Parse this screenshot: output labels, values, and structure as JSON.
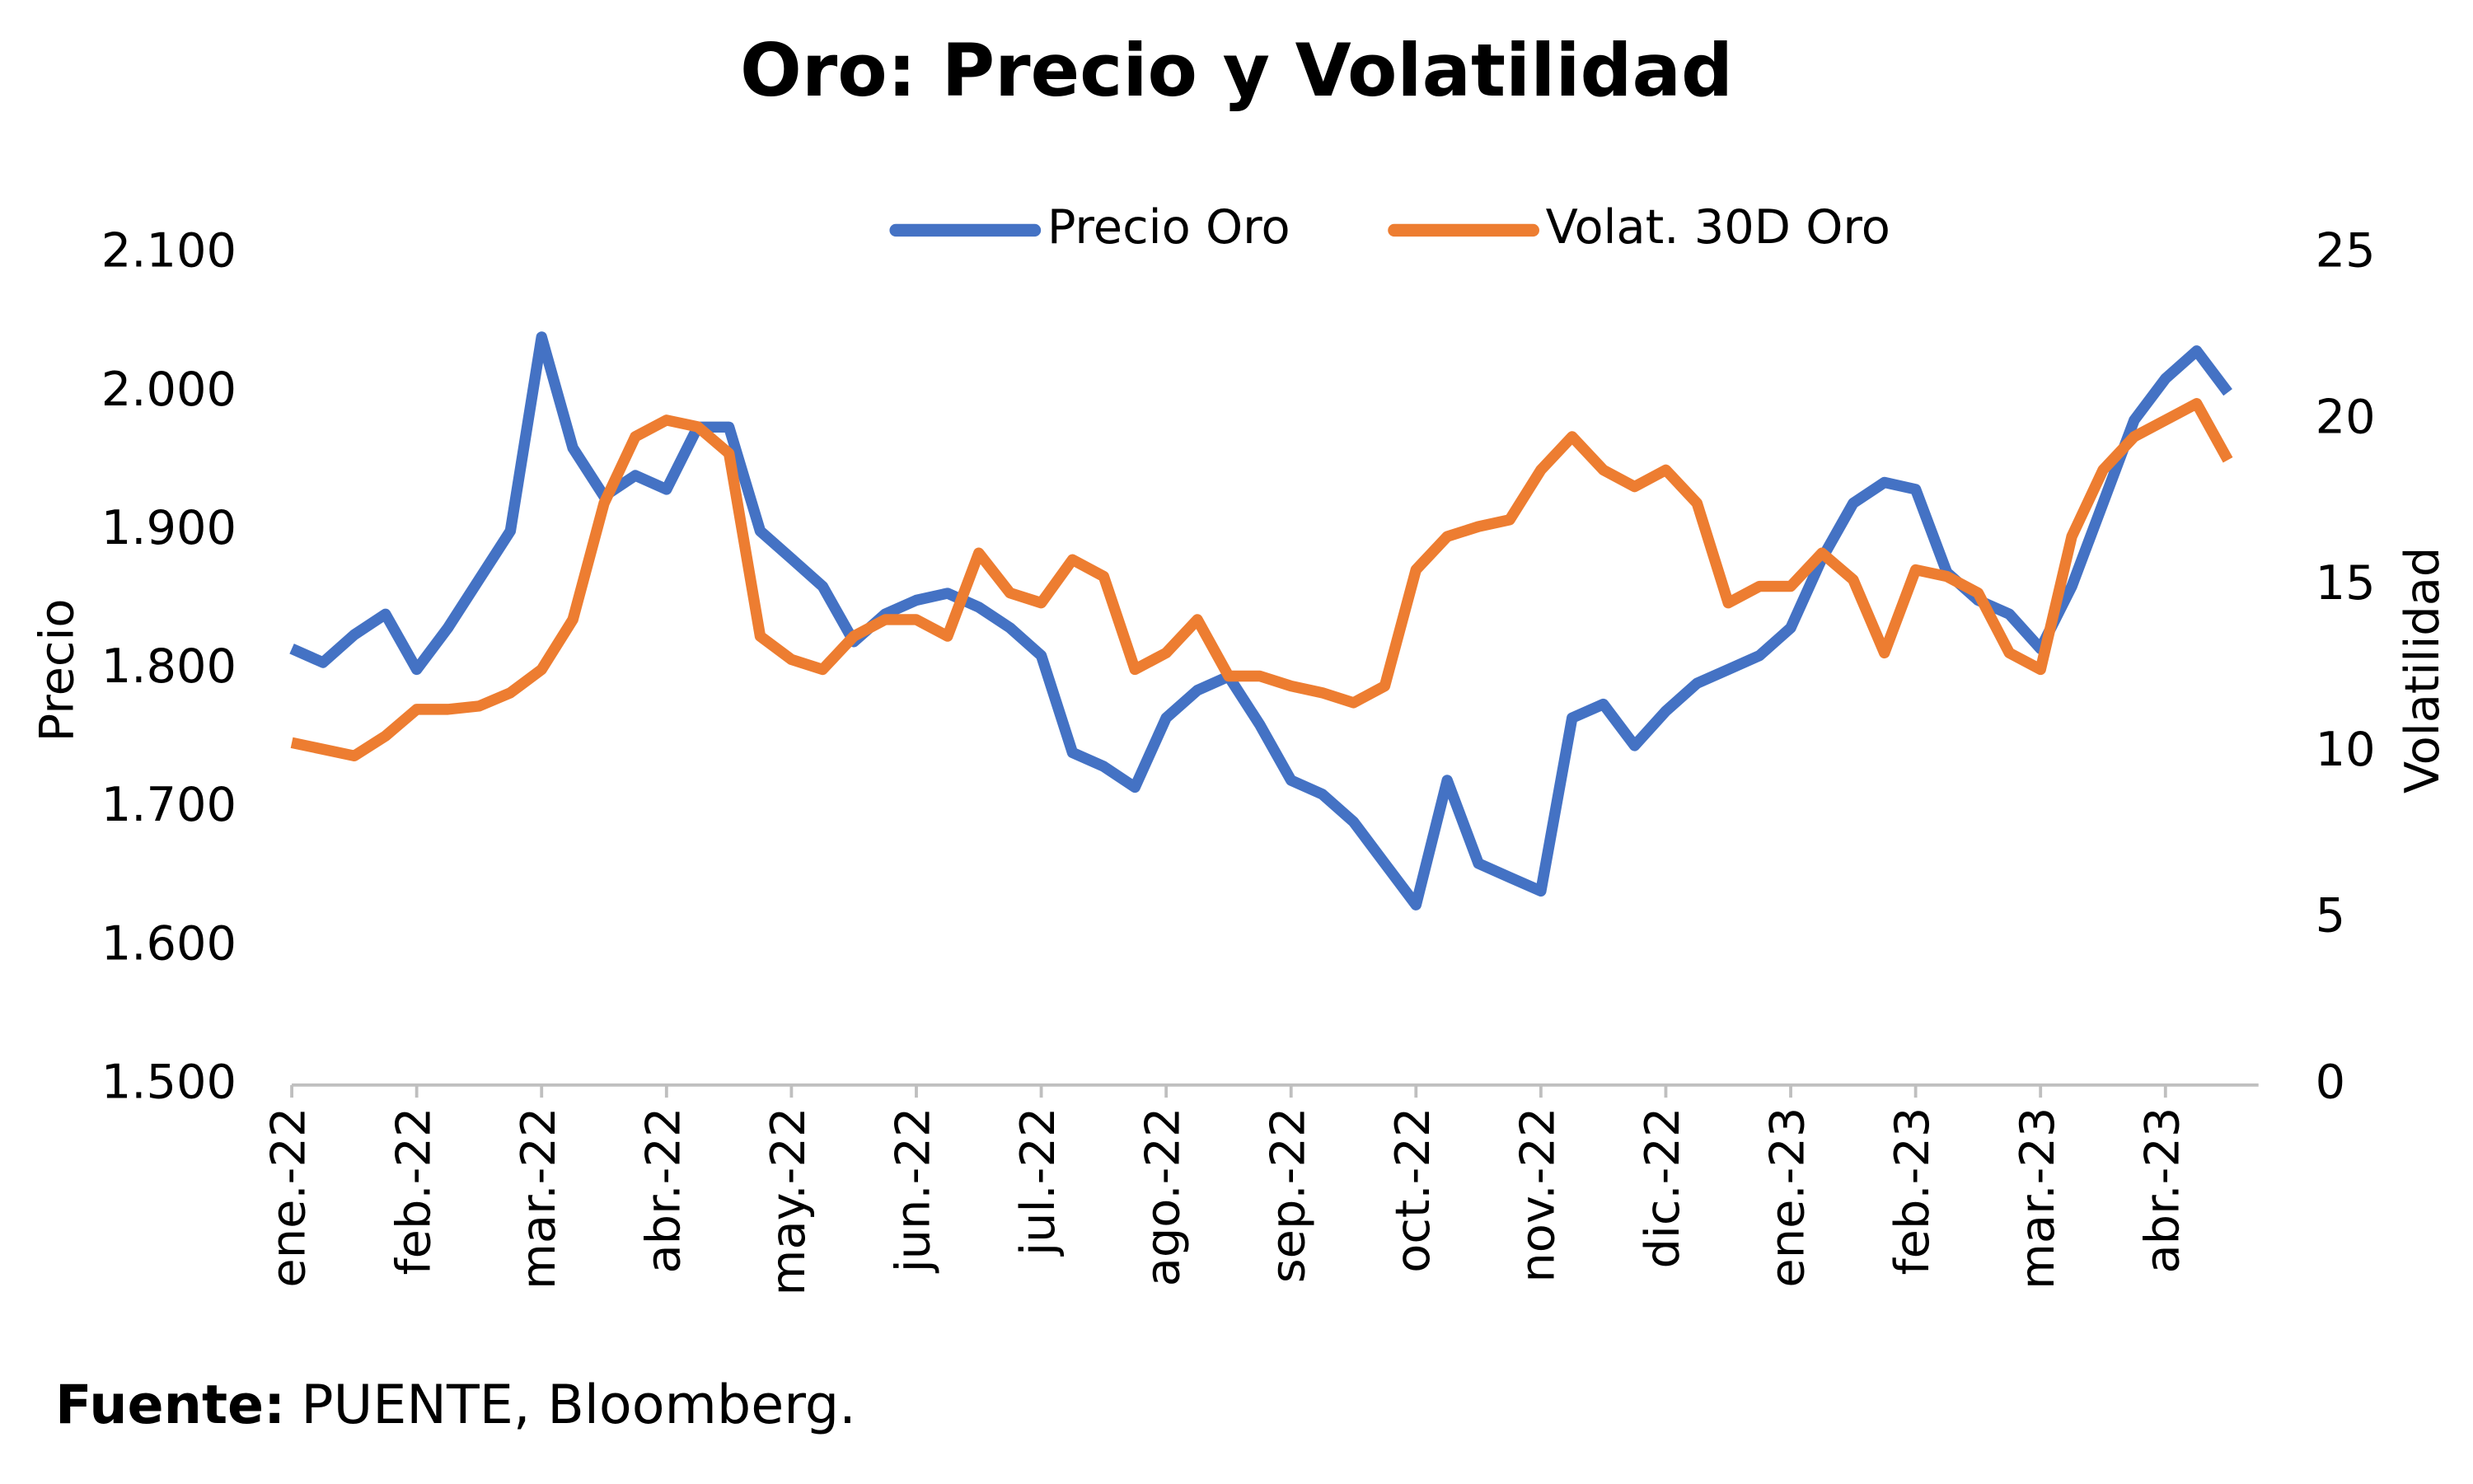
{
  "chart_data": {
    "type": "line",
    "title": "Oro: Precio y Volatilidad",
    "y_label": "Precio",
    "y2_label": "Volatilidad",
    "categories": [
      "ene.-22",
      null,
      null,
      null,
      "feb.-22",
      null,
      null,
      null,
      "mar.-22",
      null,
      null,
      null,
      "abr.-22",
      null,
      null,
      null,
      "may.-22",
      null,
      null,
      null,
      "jun.-22",
      null,
      null,
      null,
      "jul.-22",
      null,
      null,
      null,
      "ago.-22",
      null,
      null,
      null,
      "sep.-22",
      null,
      null,
      null,
      "oct.-22",
      null,
      null,
      null,
      "nov.-22",
      null,
      null,
      null,
      "dic.-22",
      null,
      null,
      null,
      "ene.-23",
      null,
      null,
      null,
      "feb.-23",
      null,
      null,
      null,
      "mar.-23",
      null,
      null,
      null,
      "abr.-23",
      null,
      null
    ],
    "series": [
      {
        "name": "Precio Oro",
        "color": "#4472c4",
        "values": [
          1815,
          1805,
          1825,
          1840,
          1800,
          1830,
          1865,
          1900,
          2040,
          1960,
          1925,
          1940,
          1930,
          1975,
          1975,
          1900,
          1880,
          1860,
          1820,
          1840,
          1850,
          1855,
          1845,
          1830,
          1810,
          1740,
          1730,
          1715,
          1765,
          1785,
          1795,
          1760,
          1720,
          1710,
          1690,
          1660,
          1630,
          1720,
          1660,
          1650,
          1640,
          1765,
          1775,
          1745,
          1770,
          1790,
          1800,
          1810,
          1830,
          1880,
          1920,
          1935,
          1930,
          1870,
          1850,
          1840,
          1815,
          1860,
          1920,
          1980,
          2010,
          2030,
          2000
        ]
      },
      {
        "name": "Volat. 30D Oro",
        "color": "#ed7d31",
        "axis": "y2",
        "values": [
          10.3,
          10.1,
          9.9,
          10.5,
          11.3,
          11.3,
          11.4,
          11.8,
          12.5,
          14.0,
          17.5,
          19.5,
          20.0,
          19.8,
          19.0,
          13.5,
          12.8,
          12.5,
          13.5,
          14.0,
          14.0,
          13.5,
          16.0,
          14.8,
          14.5,
          15.8,
          15.3,
          12.5,
          13.0,
          14.0,
          12.3,
          12.3,
          12.0,
          11.8,
          11.5,
          12.0,
          15.5,
          16.5,
          16.8,
          17.0,
          18.5,
          19.5,
          18.5,
          18.0,
          18.5,
          17.5,
          14.5,
          15.0,
          15.0,
          16.0,
          15.2,
          13.0,
          15.5,
          15.3,
          14.8,
          13.0,
          12.5,
          16.5,
          18.5,
          19.5,
          20.0,
          20.5,
          18.8
        ]
      }
    ],
    "ylim": [
      1500,
      2100
    ],
    "yticks": [
      {
        "value": 1500,
        "label": "1.500"
      },
      {
        "value": 1600,
        "label": "1.600"
      },
      {
        "value": 1700,
        "label": "1.700"
      },
      {
        "value": 1800,
        "label": "1.800"
      },
      {
        "value": 1900,
        "label": "1.900"
      },
      {
        "value": 2000,
        "label": "2.000"
      },
      {
        "value": 2100,
        "label": "2.100"
      }
    ],
    "y2lim": [
      0,
      25
    ],
    "y2ticks": [
      0,
      5,
      10,
      15,
      20,
      25
    ],
    "legend": "top",
    "grid": false
  },
  "source": {
    "label": "Fuente:",
    "text": "PUENTE, Bloomberg."
  }
}
